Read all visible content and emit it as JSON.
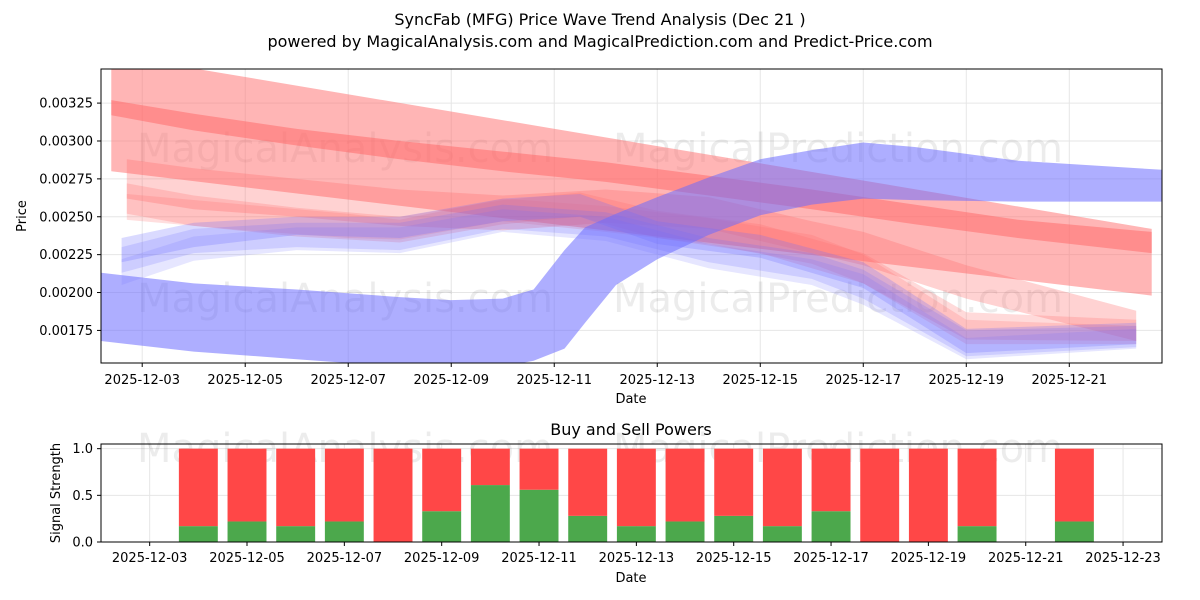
{
  "header": {
    "title": "SyncFab (MFG) Price Wave Trend Analysis (Dec 21 )",
    "subtitle": "powered by MagicalAnalysis.com and MagicalPrediction.com and Predict-Price.com"
  },
  "watermarks": [
    "MagicalAnalysis.com",
    "MagicalPrediction.com"
  ],
  "colors": {
    "buy": "#4ca84c",
    "sell": "#ff4747",
    "blue_band": "#6b6bff",
    "red_band": "#ff6b6b",
    "grid": "#e6e6e6"
  },
  "chart_data": [
    {
      "type": "area",
      "title": "",
      "xlabel": "Date",
      "ylabel": "Price",
      "x_ticks": [
        "2025-12-03",
        "2025-12-05",
        "2025-12-07",
        "2025-12-09",
        "2025-12-11",
        "2025-12-13",
        "2025-12-15",
        "2025-12-17",
        "2025-12-19",
        "2025-12-21"
      ],
      "x_tick_days": [
        3,
        5,
        7,
        9,
        11,
        13,
        15,
        17,
        19,
        21
      ],
      "xlim": [
        2.2,
        22.8
      ],
      "y_ticks": [
        "0.00175",
        "0.00200",
        "0.00225",
        "0.00250",
        "0.00275",
        "0.00300",
        "0.00325"
      ],
      "y_tick_values": [
        0.00175,
        0.002,
        0.00225,
        0.0025,
        0.00275,
        0.003,
        0.00325
      ],
      "ylim": [
        0.001535,
        0.003475
      ],
      "grid": true,
      "series": [
        {
          "name": "red-trend-wide",
          "color": "red",
          "opacity": 0.5,
          "x": [
            2.4,
            22.6
          ],
          "upper": [
            0.00357,
            0.00242
          ],
          "lower": [
            0.0028,
            0.00198
          ]
        },
        {
          "name": "red-trend-core",
          "color": "red",
          "opacity": 0.55,
          "x": [
            2.4,
            4,
            6,
            8,
            10,
            12,
            14,
            16,
            18,
            20,
            22.6
          ],
          "upper": [
            0.00327,
            0.00318,
            0.00308,
            0.003,
            0.00293,
            0.00286,
            0.00277,
            0.00268,
            0.00258,
            0.00248,
            0.0024
          ],
          "lower": [
            0.00317,
            0.00307,
            0.00297,
            0.00288,
            0.0028,
            0.00273,
            0.00264,
            0.00255,
            0.00245,
            0.00236,
            0.00226
          ]
        },
        {
          "name": "red-band-1",
          "color": "red",
          "opacity": 0.3,
          "x": [
            2.7,
            4,
            6,
            8,
            10,
            12,
            14,
            16,
            17,
            19,
            22.3
          ],
          "upper": [
            0.00288,
            0.00282,
            0.00275,
            0.00268,
            0.00264,
            0.00268,
            0.00263,
            0.00247,
            0.0024,
            0.00218,
            0.00188
          ],
          "lower": [
            0.00262,
            0.00255,
            0.0025,
            0.00244,
            0.00241,
            0.00246,
            0.00242,
            0.00226,
            0.00218,
            0.00196,
            0.00168
          ]
        },
        {
          "name": "red-band-2",
          "color": "red",
          "opacity": 0.25,
          "x": [
            2.7,
            4,
            6,
            8,
            10,
            11.5,
            13,
            15,
            17,
            19,
            22.3
          ],
          "upper": [
            0.00272,
            0.00264,
            0.00256,
            0.0025,
            0.00261,
            0.00266,
            0.00254,
            0.00245,
            0.00226,
            0.00187,
            0.00182
          ],
          "lower": [
            0.00252,
            0.00244,
            0.00237,
            0.00233,
            0.00245,
            0.0025,
            0.00236,
            0.00226,
            0.00206,
            0.00169,
            0.00168
          ]
        },
        {
          "name": "red-band-3",
          "color": "red",
          "opacity": 0.22,
          "x": [
            2.7,
            5,
            7,
            8,
            10,
            12,
            14,
            16,
            17,
            19,
            22.3
          ],
          "upper": [
            0.00265,
            0.00258,
            0.00252,
            0.00248,
            0.00262,
            0.00257,
            0.00249,
            0.00238,
            0.00225,
            0.00182,
            0.00178
          ],
          "lower": [
            0.00248,
            0.00241,
            0.00236,
            0.00235,
            0.00247,
            0.0024,
            0.00232,
            0.00219,
            0.00206,
            0.00166,
            0.00166
          ]
        },
        {
          "name": "blue-band-1",
          "color": "blue",
          "opacity": 0.25,
          "x": [
            2.6,
            4,
            6,
            8,
            10,
            11.5,
            13,
            15,
            17,
            19,
            22.3
          ],
          "upper": [
            0.00236,
            0.00246,
            0.0025,
            0.0025,
            0.00262,
            0.00265,
            0.00247,
            0.00238,
            0.0022,
            0.00176,
            0.0018
          ],
          "lower": [
            0.0022,
            0.0023,
            0.00238,
            0.00236,
            0.00247,
            0.0025,
            0.00232,
            0.00223,
            0.00203,
            0.0016,
            0.00166
          ]
        },
        {
          "name": "blue-band-2",
          "color": "blue",
          "opacity": 0.2,
          "x": [
            2.6,
            4,
            6,
            8,
            10,
            12,
            14,
            16,
            17,
            19,
            22.3
          ],
          "upper": [
            0.0023,
            0.00242,
            0.00246,
            0.00246,
            0.00258,
            0.00253,
            0.00236,
            0.00226,
            0.00215,
            0.00175,
            0.00178
          ],
          "lower": [
            0.00213,
            0.00226,
            0.0023,
            0.00228,
            0.00242,
            0.00237,
            0.0022,
            0.00209,
            0.00196,
            0.00158,
            0.00164
          ]
        },
        {
          "name": "blue-band-3",
          "color": "blue",
          "opacity": 0.17,
          "x": [
            2.6,
            4,
            6,
            8,
            10,
            12,
            14,
            16,
            17,
            19,
            22.3
          ],
          "upper": [
            0.00222,
            0.00237,
            0.00243,
            0.00243,
            0.00255,
            0.0025,
            0.00232,
            0.00222,
            0.00212,
            0.0017,
            0.00176
          ],
          "lower": [
            0.00205,
            0.00221,
            0.00228,
            0.00226,
            0.0024,
            0.00234,
            0.00216,
            0.00205,
            0.00192,
            0.00156,
            0.00163
          ]
        },
        {
          "name": "blue-wave-trend",
          "color": "blue",
          "opacity": 0.55,
          "x": [
            2.2,
            4,
            6,
            8,
            9,
            10,
            10.6,
            11.2,
            11.6,
            12.2,
            13,
            14,
            15,
            16,
            17,
            18,
            20,
            22.8
          ],
          "upper": [
            0.00213,
            0.00206,
            0.00202,
            0.00197,
            0.00195,
            0.00196,
            0.00202,
            0.00228,
            0.00243,
            0.00252,
            0.00263,
            0.00276,
            0.00288,
            0.00294,
            0.00299,
            0.00296,
            0.00287,
            0.00281
          ],
          "lower": [
            0.00168,
            0.00161,
            0.00156,
            0.00151,
            0.0015,
            0.00151,
            0.00155,
            0.00163,
            0.0018,
            0.00205,
            0.00222,
            0.00238,
            0.00251,
            0.00258,
            0.00262,
            0.00261,
            0.0026,
            0.0026
          ]
        }
      ]
    },
    {
      "type": "bar",
      "title": "Buy and Sell Powers",
      "xlabel": "Date",
      "ylabel": "Signal Strength",
      "x_ticks": [
        "2025-12-03",
        "2025-12-05",
        "2025-12-07",
        "2025-12-09",
        "2025-12-11",
        "2025-12-13",
        "2025-12-15",
        "2025-12-17",
        "2025-12-19",
        "2025-12-21",
        "2025-12-23"
      ],
      "x_tick_days": [
        3,
        5,
        7,
        9,
        11,
        13,
        15,
        17,
        19,
        21,
        23
      ],
      "xlim": [
        2.0,
        23.8
      ],
      "y_ticks": [
        "0.0",
        "0.5",
        "1.0"
      ],
      "y_tick_values": [
        0,
        0.5,
        1.0
      ],
      "ylim": [
        0,
        1.05
      ],
      "grid": true,
      "days": [
        4,
        5,
        6,
        7,
        8,
        9,
        10,
        11,
        12,
        13,
        14,
        15,
        16,
        17,
        18,
        19,
        20,
        22
      ],
      "series": [
        {
          "name": "Buy",
          "color": "green",
          "values": [
            0.17,
            0.22,
            0.17,
            0.22,
            0.0,
            0.33,
            0.61,
            0.56,
            0.28,
            0.17,
            0.22,
            0.28,
            0.17,
            0.33,
            0.0,
            0.0,
            0.17,
            0.22
          ]
        },
        {
          "name": "Sell",
          "color": "red",
          "values": [
            0.83,
            0.78,
            0.83,
            0.78,
            1.0,
            0.67,
            0.39,
            0.44,
            0.72,
            0.83,
            0.78,
            0.72,
            0.83,
            0.67,
            1.0,
            1.0,
            0.83,
            0.78
          ]
        }
      ]
    }
  ]
}
